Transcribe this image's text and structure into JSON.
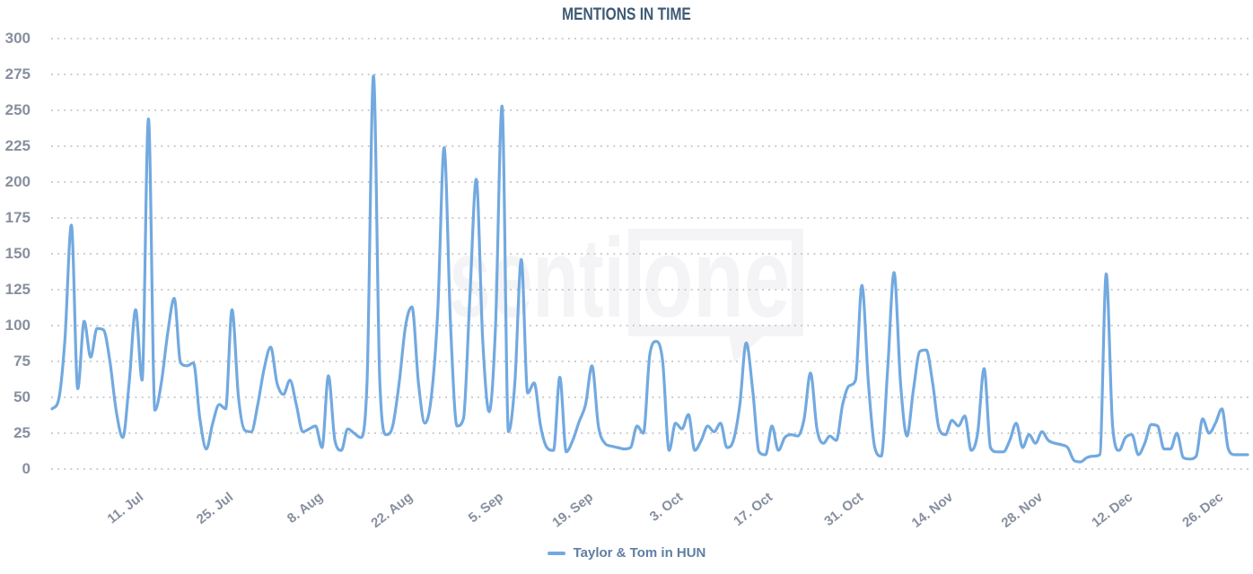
{
  "page": {
    "background": "#ffffff"
  },
  "watermark": {
    "text": "senti",
    "boxed_text": "one",
    "color": "#f4f4f6"
  },
  "chart_data": {
    "type": "line",
    "title": "MENTIONS IN TIME",
    "grid": "dotted-horizontal",
    "grid_color": "#c8cacd",
    "axis_label_color": "#878f9f",
    "title_color": "#3d5a74",
    "legend_text_color": "#5f7ea3",
    "legend_position": "bottom-center",
    "ylim": [
      0,
      300
    ],
    "yticks": [
      0,
      25,
      50,
      75,
      100,
      125,
      150,
      175,
      200,
      225,
      250,
      275,
      300
    ],
    "x_tick_labels": [
      "11. Jul",
      "25. Jul",
      "8. Aug",
      "22. Aug",
      "5. Sep",
      "19. Sep",
      "3. Oct",
      "17. Oct",
      "31. Oct",
      "14. Nov",
      "28. Nov",
      "12. Dec",
      "26. Dec"
    ],
    "x_tick_indices": [
      10,
      24,
      38,
      52,
      66,
      80,
      94,
      108,
      122,
      136,
      150,
      164,
      178
    ],
    "x_unit": "day",
    "series": [
      {
        "name": "Taylor & Tom in HUN",
        "color": "#72a9e0",
        "values": [
          42,
          48,
          90,
          170,
          56,
          103,
          78,
          98,
          97,
          75,
          40,
          22,
          60,
          111,
          62,
          244,
          41,
          60,
          95,
          119,
          74,
          72,
          74,
          35,
          14,
          32,
          45,
          42,
          111,
          50,
          27,
          26,
          45,
          70,
          85,
          60,
          52,
          62,
          45,
          26,
          28,
          30,
          15,
          65,
          20,
          13,
          28,
          25,
          22,
          60,
          274,
          60,
          24,
          30,
          60,
          100,
          113,
          60,
          32,
          50,
          110,
          224,
          100,
          30,
          35,
          120,
          202,
          90,
          40,
          100,
          253,
          26,
          60,
          146,
          53,
          60,
          30,
          15,
          13,
          64,
          12,
          20,
          33,
          45,
          72,
          30,
          18,
          16,
          15,
          14,
          15,
          30,
          25,
          80,
          89,
          75,
          13,
          32,
          28,
          38,
          13,
          20,
          30,
          26,
          32,
          15,
          20,
          45,
          88,
          55,
          12,
          10,
          30,
          13,
          22,
          24,
          23,
          35,
          67,
          28,
          18,
          23,
          20,
          45,
          58,
          62,
          128,
          60,
          15,
          9,
          70,
          137,
          60,
          23,
          55,
          82,
          83,
          60,
          28,
          24,
          34,
          30,
          37,
          13,
          25,
          70,
          15,
          12,
          12,
          20,
          32,
          15,
          24,
          18,
          26,
          20,
          18,
          17,
          15,
          6,
          5,
          8,
          9,
          10,
          136,
          30,
          13,
          22,
          24,
          10,
          18,
          31,
          30,
          14,
          14,
          25,
          8,
          7,
          9,
          35,
          25,
          32,
          42,
          14,
          10,
          10,
          10
        ]
      }
    ]
  }
}
